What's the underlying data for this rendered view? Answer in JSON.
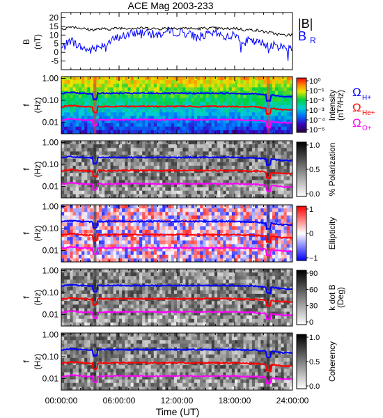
{
  "chart_data": {
    "type": "line",
    "title": "ACE Mag 2003-233",
    "xlabel": "Time (UT)",
    "x_tick_labels": [
      "00:00:00",
      "06:00:00",
      "12:00:00",
      "18:00:00",
      "24:00:00"
    ],
    "x_range_hours": [
      0,
      24
    ],
    "colors": {
      "B_total": "#000000",
      "B_R": "#0000ff",
      "H_plus": "#0000ff",
      "He_plus": "#ff0000",
      "O_plus": "#ff00ff"
    },
    "panels": [
      {
        "ylabel_line1": "B",
        "ylabel_line2": "(nT)",
        "ylim": [
          -10,
          23
        ],
        "y_tick_labels": [
          "20",
          "15",
          "10",
          "5",
          "0",
          "-5"
        ],
        "y_tick_values": [
          20,
          15,
          10,
          5,
          0,
          -5
        ],
        "legend": {
          "b_total": "|B|",
          "b_r_main": "B",
          "b_r_sub": "R"
        },
        "series": [
          {
            "key": "B_total",
            "x_hours": [
              0,
              1,
              2,
              3,
              4,
              5,
              6,
              7,
              8,
              9,
              10,
              11,
              12,
              13,
              14,
              15,
              16,
              17,
              18,
              19,
              20,
              21,
              22,
              23,
              24
            ],
            "values": [
              13,
              15,
              14,
              13,
              13.5,
              13.5,
              14,
              14,
              14,
              14,
              13.5,
              14,
              14,
              14,
              13.5,
              14,
              14,
              13.5,
              14,
              13,
              13,
              12,
              11,
              10,
              10
            ]
          },
          {
            "key": "B_R",
            "x_hours": [
              0,
              1,
              2,
              3,
              4,
              5,
              6,
              7,
              8,
              9,
              10,
              11,
              12,
              13,
              14,
              15,
              16,
              17,
              18,
              19,
              20,
              21,
              22,
              23,
              24
            ],
            "values": [
              2,
              7,
              3,
              1,
              4,
              6,
              9,
              10,
              12,
              11,
              10,
              12,
              12,
              11,
              9,
              10,
              11,
              9,
              10,
              7,
              6,
              5,
              4,
              3,
              3
            ]
          }
        ]
      },
      {
        "kind": "spectrogram",
        "colormap": "rainbow",
        "ylabel_line1": "f",
        "ylabel_line2": "(Hz)",
        "bar_label_line1": "Intensity",
        "bar_label_line2": "(nT²/Hz)",
        "bar_tick_labels": [
          "10⁰",
          "10⁻¹",
          "10⁻²",
          "10⁻³",
          "10⁻⁴",
          "10⁻⁵"
        ],
        "ion_legend": [
          "ΩH+",
          "ΩHe+",
          "ΩO+"
        ]
      },
      {
        "kind": "spectrogram",
        "colormap": "gray",
        "ylabel_line1": "f",
        "ylabel_line2": "(Hz)",
        "bar_label_line1": "% Polarization",
        "bar_label_line2": "",
        "bar_tick_labels": [
          "1.0",
          "0.5",
          "0.0"
        ]
      },
      {
        "kind": "spectrogram",
        "colormap": "bwr",
        "ylabel_line1": "f",
        "ylabel_line2": "(Hz)",
        "bar_label_line1": "Ellipticity",
        "bar_label_line2": "",
        "bar_tick_labels": [
          "1",
          "0",
          "−1"
        ]
      },
      {
        "kind": "spectrogram",
        "colormap": "gray",
        "ylabel_line1": "f",
        "ylabel_line2": "(Hz)",
        "bar_label_line1": "k dot B",
        "bar_label_line2": "(Deg)",
        "bar_tick_labels": [
          "90",
          "60",
          "30",
          "0"
        ]
      },
      {
        "kind": "spectrogram",
        "colormap": "gray",
        "ylabel_line1": "f",
        "ylabel_line2": "(Hz)",
        "bar_label_line1": "Coherency",
        "bar_label_line2": "",
        "bar_tick_labels": [
          "1.0",
          "0.5",
          "0.0"
        ]
      }
    ],
    "frequency_axis": {
      "scale": "log",
      "ylim_hz": [
        0.003,
        1.2
      ],
      "y_tick_labels": [
        "1.00",
        "0.10",
        "0.01"
      ],
      "y_tick_values": [
        1.0,
        0.1,
        0.01
      ]
    },
    "gyrofrequency_series": [
      {
        "key": "H_plus",
        "x_hours": [
          0,
          1,
          2,
          3,
          4,
          5,
          6,
          7,
          8,
          9,
          10,
          11,
          12,
          13,
          14,
          15,
          16,
          17,
          18,
          19,
          20,
          21,
          22,
          23,
          24
        ],
        "values_hz": [
          0.2,
          0.23,
          0.21,
          0.2,
          0.21,
          0.21,
          0.21,
          0.21,
          0.21,
          0.21,
          0.21,
          0.21,
          0.21,
          0.21,
          0.21,
          0.21,
          0.21,
          0.21,
          0.21,
          0.2,
          0.2,
          0.18,
          0.17,
          0.15,
          0.15
        ]
      },
      {
        "key": "He_plus",
        "x_hours": [
          0,
          1,
          2,
          3,
          4,
          5,
          6,
          7,
          8,
          9,
          10,
          11,
          12,
          13,
          14,
          15,
          16,
          17,
          18,
          19,
          20,
          21,
          22,
          23,
          24
        ],
        "values_hz": [
          0.05,
          0.058,
          0.053,
          0.05,
          0.052,
          0.052,
          0.053,
          0.053,
          0.053,
          0.053,
          0.052,
          0.053,
          0.053,
          0.053,
          0.052,
          0.053,
          0.053,
          0.052,
          0.053,
          0.05,
          0.05,
          0.046,
          0.042,
          0.038,
          0.038
        ]
      },
      {
        "key": "O_plus",
        "x_hours": [
          0,
          1,
          2,
          3,
          4,
          5,
          6,
          7,
          8,
          9,
          10,
          11,
          12,
          13,
          14,
          15,
          16,
          17,
          18,
          19,
          20,
          21,
          22,
          23,
          24
        ],
        "values_hz": [
          0.0125,
          0.0145,
          0.0132,
          0.0125,
          0.013,
          0.013,
          0.0132,
          0.0132,
          0.0132,
          0.0132,
          0.013,
          0.0132,
          0.0132,
          0.0132,
          0.013,
          0.0132,
          0.0132,
          0.013,
          0.0132,
          0.0125,
          0.0125,
          0.0115,
          0.0105,
          0.0095,
          0.0095
        ]
      }
    ],
    "events_hours": [
      3.5,
      21.5
    ]
  }
}
